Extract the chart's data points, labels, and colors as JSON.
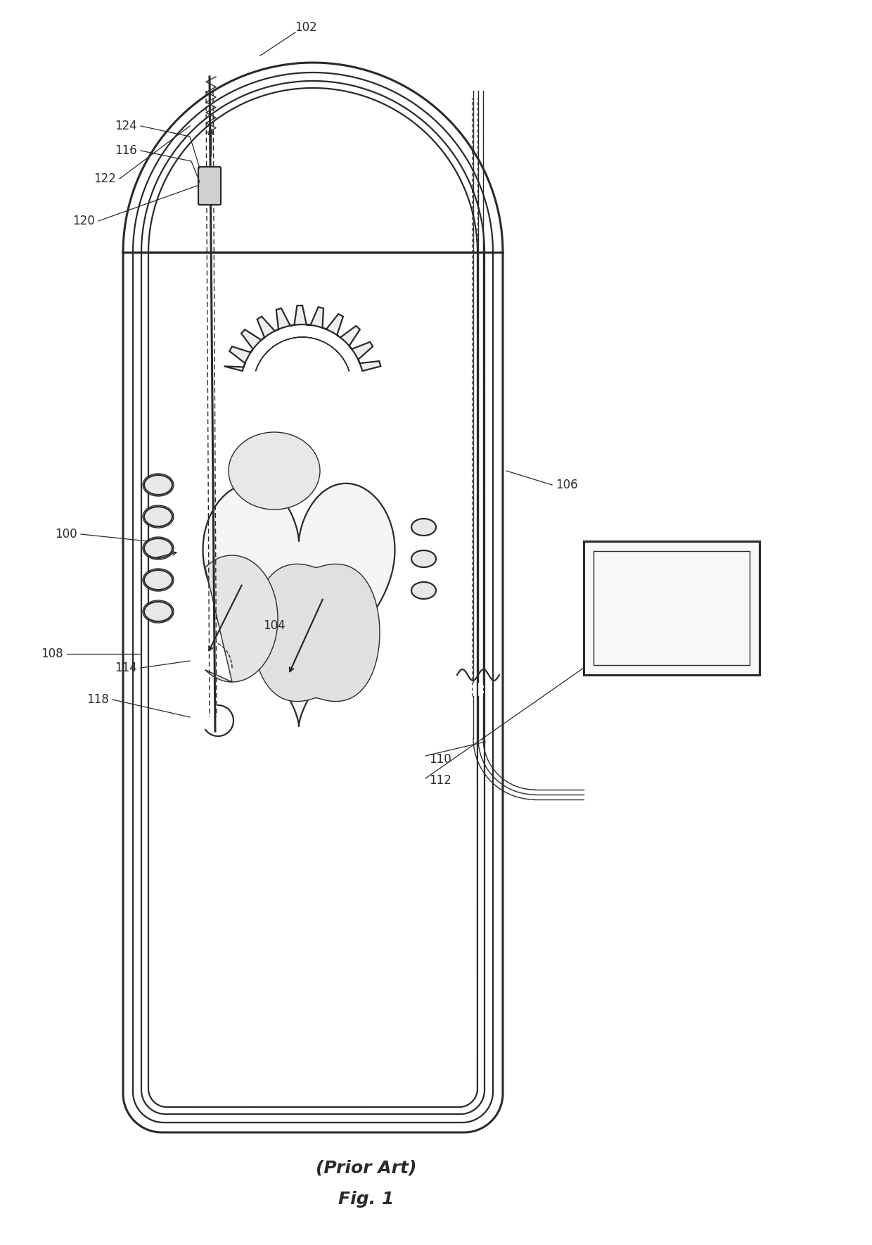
{
  "bg_color": "#ffffff",
  "line_color": "#2a2a2a",
  "lw_thin": 1.0,
  "lw_med": 1.6,
  "lw_thick": 2.2,
  "fig_width": 12.4,
  "fig_height": 17.69,
  "caption_line1": "(Prior Art)",
  "caption_line2": "Fig. 1",
  "label_fontsize": 12
}
